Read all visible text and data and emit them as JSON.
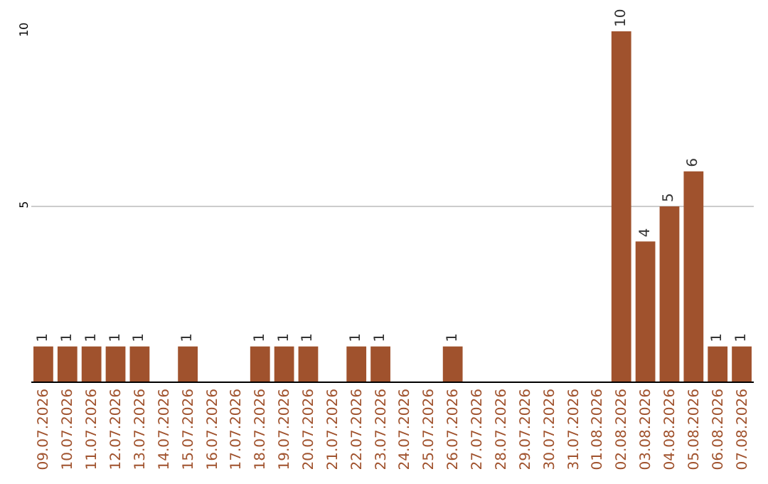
{
  "chart_data": {
    "type": "bar",
    "categories": [
      "09.07.2026",
      "10.07.2026",
      "11.07.2026",
      "12.07.2026",
      "13.07.2026",
      "14.07.2026",
      "15.07.2026",
      "16.07.2026",
      "17.07.2026",
      "18.07.2026",
      "19.07.2026",
      "20.07.2026",
      "21.07.2026",
      "22.07.2026",
      "23.07.2026",
      "24.07.2026",
      "25.07.2026",
      "26.07.2026",
      "27.07.2026",
      "28.07.2026",
      "29.07.2026",
      "30.07.2026",
      "31.07.2026",
      "01.08.2026",
      "02.08.2026",
      "03.08.2026",
      "04.08.2026",
      "05.08.2026",
      "06.08.2026",
      "07.08.2026"
    ],
    "values": [
      1,
      1,
      1,
      1,
      1,
      0,
      1,
      0,
      0,
      1,
      1,
      1,
      0,
      1,
      1,
      0,
      0,
      1,
      0,
      0,
      0,
      0,
      0,
      0,
      10,
      4,
      5,
      6,
      1,
      1
    ],
    "value_labels": [
      "1",
      "1",
      "1",
      "1",
      "1",
      null,
      "1",
      null,
      null,
      "1",
      "1",
      "1",
      null,
      "1",
      "1",
      null,
      null,
      "1",
      null,
      null,
      null,
      null,
      null,
      null,
      "10",
      "4",
      "5",
      "6",
      "1",
      "1"
    ],
    "color": "#a0522d",
    "ylim": [
      0,
      10
    ],
    "yticks": [
      5,
      10
    ],
    "grid": "y"
  }
}
